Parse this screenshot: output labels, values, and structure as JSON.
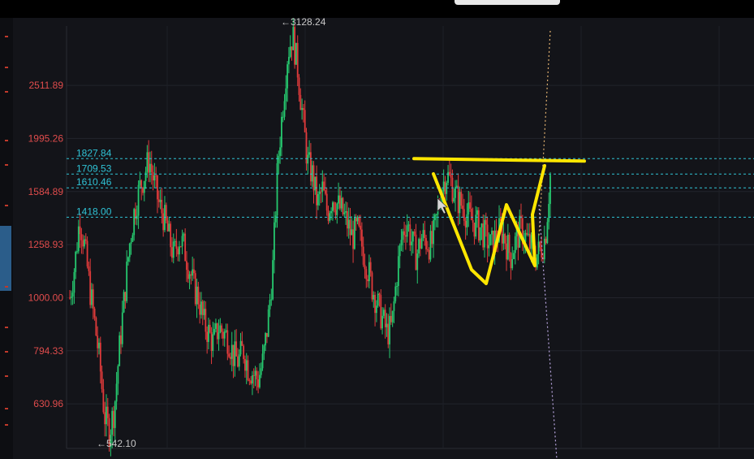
{
  "chart_data": {
    "type": "candlestick",
    "ylim": [
      520,
      3250
    ],
    "y_ticks": [
      {
        "value": 2511.89,
        "label": "2511.89"
      },
      {
        "value": 1995.26,
        "label": "1995.26"
      },
      {
        "value": 1584.89,
        "label": "1584.89"
      },
      {
        "value": 1258.93,
        "label": "1258.93"
      },
      {
        "value": 1000.0,
        "label": "1000.00"
      },
      {
        "value": 794.33,
        "label": "794.33"
      },
      {
        "value": 630.96,
        "label": "630.96"
      }
    ],
    "horizontal_lines": [
      {
        "value": 1827.84,
        "label": "1827.84"
      },
      {
        "value": 1709.53,
        "label": "1709.53"
      },
      {
        "value": 1610.46,
        "label": "1610.46"
      },
      {
        "value": 1418.0,
        "label": "1418.00"
      }
    ],
    "extremes": [
      {
        "kind": "high",
        "value": 3128.24,
        "label": "←3128.24"
      },
      {
        "kind": "low",
        "value": 542.1,
        "label": "←542.10"
      }
    ],
    "price_path": [
      1000,
      1150,
      1418,
      1250,
      1050,
      900,
      760,
      600,
      560,
      620,
      800,
      1000,
      1250,
      1450,
      1600,
      1700,
      1827,
      1650,
      1500,
      1420,
      1300,
      1200,
      1300,
      1250,
      1150,
      1050,
      1000,
      900,
      860,
      820,
      880,
      860,
      840,
      780,
      760,
      800,
      740,
      720,
      700,
      760,
      900,
      1150,
      1800,
      2300,
      2900,
      3128,
      2700,
      2200,
      1800,
      1700,
      1500,
      1600,
      1450,
      1550,
      1500,
      1450,
      1380,
      1300,
      1350,
      1250,
      1150,
      1050,
      980,
      920,
      860,
      880,
      1100,
      1300,
      1400,
      1280,
      1200,
      1300,
      1280,
      1250,
      1400,
      1600,
      1710,
      1650,
      1550,
      1500,
      1450,
      1400,
      1380,
      1350,
      1300,
      1250,
      1300,
      1350,
      1280,
      1200,
      1280,
      1350,
      1300,
      1250,
      1200,
      1230,
      1300,
      1700
    ],
    "drawing_color": "#ffe600",
    "up_color": "#26c96f",
    "down_color": "#e23b3b",
    "level_line_color": "#2fc3d6"
  }
}
